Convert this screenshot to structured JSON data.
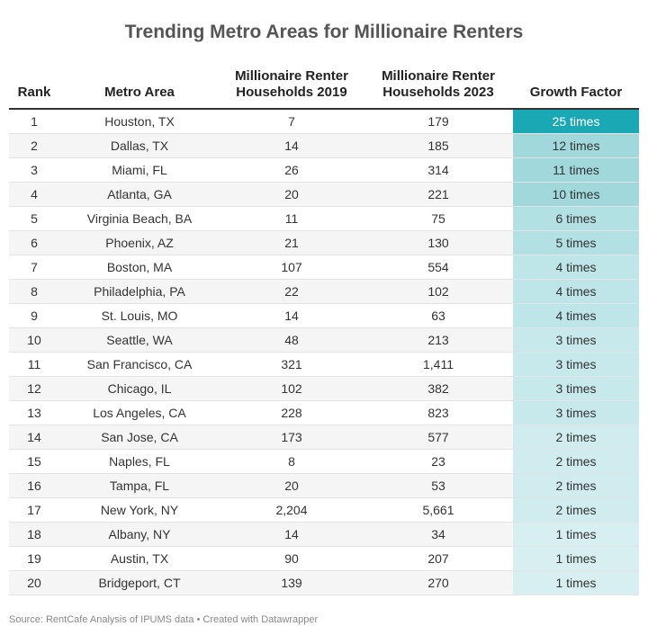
{
  "header": {
    "title": "Trending Metro Areas for Millionaire Renters"
  },
  "table": {
    "columns": [
      "Rank",
      "Metro Area",
      "Millionaire Renter Households 2019",
      "Millionaire Renter Households 2023",
      "Growth Factor"
    ],
    "rows": [
      [
        "1",
        "Houston, TX",
        "7",
        "179",
        "25 times"
      ],
      [
        "2",
        "Dallas, TX",
        "14",
        "185",
        "12 times"
      ],
      [
        "3",
        "Miami, FL",
        "26",
        "314",
        "11 times"
      ],
      [
        "4",
        "Atlanta, GA",
        "20",
        "221",
        "10 times"
      ],
      [
        "5",
        "Virginia Beach, BA",
        "11",
        "75",
        "6 times"
      ],
      [
        "6",
        "Phoenix, AZ",
        "21",
        "130",
        "5 times"
      ],
      [
        "7",
        "Boston, MA",
        "107",
        "554",
        "4 times"
      ],
      [
        "8",
        "Philadelphia, PA",
        "22",
        "102",
        "4 times"
      ],
      [
        "9",
        "St. Louis, MO",
        "14",
        "63",
        "4 times"
      ],
      [
        "10",
        "Seattle, WA",
        "48",
        "213",
        "3 times"
      ],
      [
        "11",
        "San Francisco, CA",
        "321",
        "1,411",
        "3 times"
      ],
      [
        "12",
        "Chicago, IL",
        "102",
        "382",
        "3 times"
      ],
      [
        "13",
        "Los Angeles, CA",
        "228",
        "823",
        "3 times"
      ],
      [
        "14",
        "San Jose, CA",
        "173",
        "577",
        "2 times"
      ],
      [
        "15",
        "Naples, FL",
        "8",
        "23",
        "2 times"
      ],
      [
        "16",
        "Tampa, FL",
        "20",
        "53",
        "2 times"
      ],
      [
        "17",
        "New York, NY",
        "2,204",
        "5,661",
        "2 times"
      ],
      [
        "18",
        "Albany, NY",
        "14",
        "34",
        "1 times"
      ],
      [
        "19",
        "Austin, TX",
        "90",
        "207",
        "1 times"
      ],
      [
        "20",
        "Bridgeport, CT",
        "139",
        "270",
        "1 times"
      ]
    ],
    "growth_colors": [
      "#1ba8b5",
      "#a0d8dc",
      "#a0d8dc",
      "#a0d8dc",
      "#b3e0e3",
      "#b3e0e3",
      "#bee5e7",
      "#bee5e7",
      "#bee5e7",
      "#c8e9eb",
      "#c8e9eb",
      "#c8e9eb",
      "#c8e9eb",
      "#d0ecee",
      "#d0ecee",
      "#d0ecee",
      "#d0ecee",
      "#d8eff1",
      "#d8eff1",
      "#d8eff1"
    ]
  },
  "footer": {
    "source": "Source: RentCafe Analysis of IPUMS data • Created with Datawrapper"
  }
}
